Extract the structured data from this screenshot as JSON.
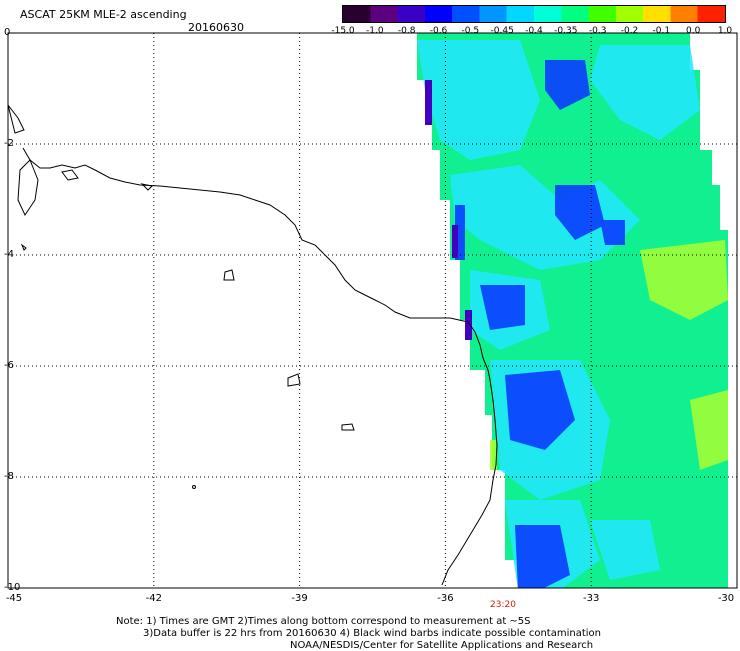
{
  "header": {
    "title": "ASCAT 25KM MLE-2 ascending",
    "date": "20160630"
  },
  "colorbar": {
    "labels": [
      "-15.0",
      "-1.0",
      "-0.8",
      "-0.6",
      "-0.5",
      "-0.45",
      "-0.4",
      "-0.35",
      "-0.3",
      "-0.2",
      "-0.1",
      "0.0",
      "1.0"
    ],
    "colors": [
      "#2a0030",
      "#5a0080",
      "#3a00c8",
      "#0000ff",
      "#0050ff",
      "#0096ff",
      "#00d8ff",
      "#00ffd8",
      "#00ff80",
      "#40ff00",
      "#a0ff00",
      "#ffe000",
      "#ff8000",
      "#ff2000"
    ]
  },
  "axes": {
    "lat_labels": [
      "0",
      "-2",
      "-4",
      "-6",
      "-8",
      "-10"
    ],
    "lon_labels": [
      "-45",
      "-42",
      "-39",
      "-36",
      "-33",
      "-30"
    ],
    "lat_range": [
      -10,
      0
    ],
    "lon_range": [
      -45,
      -30
    ],
    "grid": "dotted"
  },
  "pass_time": "23:20",
  "notes": {
    "line1": "Note: 1) Times are GMT 2)Times along bottom correspond to measurement at ~5S",
    "line2": "3)Data buffer is 22 hrs from 20160630 4) Black wind barbs indicate possible contamination",
    "line3": "NOAA/NESDIS/Center for Satellite Applications and Research"
  },
  "map": {
    "swath_level": "-0.35",
    "land": "coastline outline of north-eastern Brazil"
  }
}
